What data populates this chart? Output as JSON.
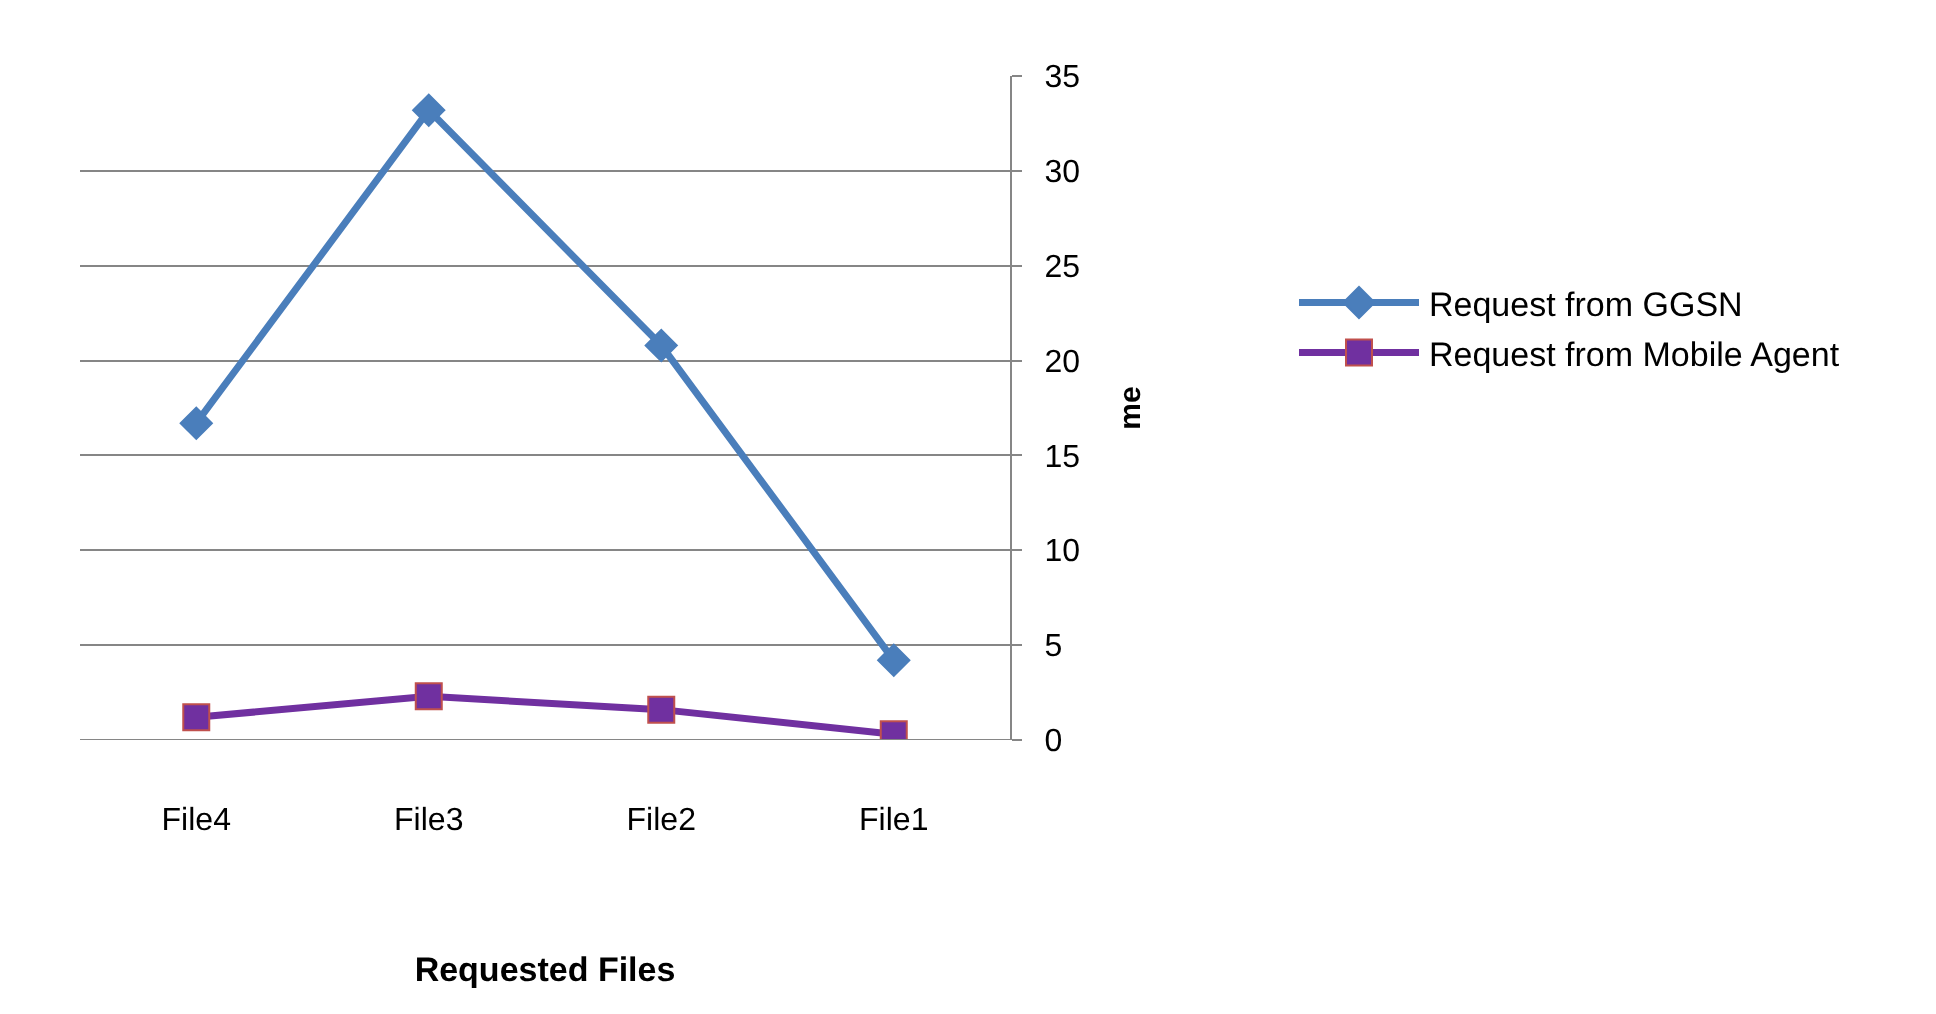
{
  "chart_data": {
    "type": "line",
    "xlabel": "Requested Files",
    "ylabel": "me",
    "categories": [
      "File4",
      "File3",
      "File2",
      "File1"
    ],
    "series": [
      {
        "name": "Request from GGSN",
        "color": "#4a7ebb",
        "marker": "diamond",
        "values": [
          16.7,
          33.2,
          20.8,
          4.2
        ]
      },
      {
        "name": "Request from Mobile Agent",
        "color": "#7030a0",
        "marker": "square",
        "values": [
          1.2,
          2.3,
          1.6,
          0.3
        ]
      }
    ],
    "ylim": [
      0,
      35
    ],
    "yticks": [
      0,
      5,
      10,
      15,
      20,
      25,
      30,
      35
    ],
    "grid": "y",
    "legend": "right"
  }
}
